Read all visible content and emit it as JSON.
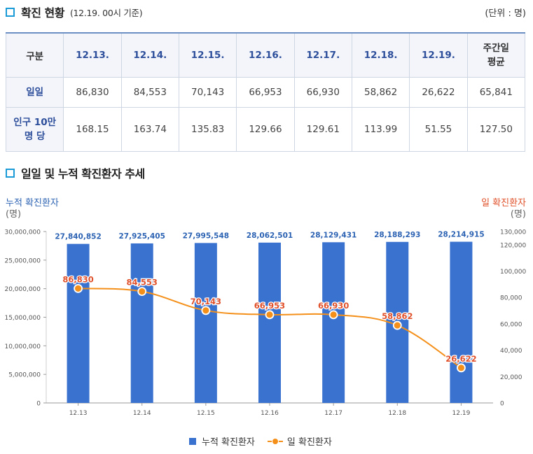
{
  "section1": {
    "title": "확진 현황",
    "subtitle": "(12.19. 00시 기준)",
    "unit": "(단위 : 명)"
  },
  "table": {
    "header_first": "구분",
    "dates": [
      "12.13.",
      "12.14.",
      "12.15.",
      "12.16.",
      "12.17.",
      "12.18.",
      "12.19."
    ],
    "header_last_line1": "주간일",
    "header_last_line2": "평균",
    "row1_label": "일일",
    "row1": [
      "86,830",
      "84,553",
      "70,143",
      "66,953",
      "66,930",
      "58,862",
      "26,622",
      "65,841"
    ],
    "row2_label_line1": "인구 10만",
    "row2_label_line2": "명 당",
    "row2": [
      "168.15",
      "163.74",
      "135.83",
      "129.66",
      "129.61",
      "113.99",
      "51.55",
      "127.50"
    ]
  },
  "section2": {
    "title": "일일 및 누적 확진환자 추세"
  },
  "colors": {
    "bar": "#3a73cf",
    "line": "#f4901a",
    "accent": "#1a9ad6",
    "left_axis_label": "#2d63b3",
    "right_axis_label": "#e0502a"
  },
  "chart_data": {
    "type": "bar",
    "categories": [
      "12.13",
      "12.14",
      "12.15",
      "12.16",
      "12.17",
      "12.18",
      "12.19"
    ],
    "y_left_label_line1": "누적 확진환자",
    "y_left_label_line2": "(명)",
    "y_right_label_line1": "일 확진환자",
    "y_right_label_line2": "(명)",
    "y_left_ticks": [
      "0",
      "5,000,000",
      "10,000,000",
      "15,000,000",
      "20,000,000",
      "25,000,000",
      "30,000,000"
    ],
    "y_right_ticks": [
      "0",
      "20,000",
      "40,000",
      "60,000",
      "80,000",
      "100,000",
      "120,000",
      "130,000"
    ],
    "ylim_left": [
      0,
      30000000
    ],
    "ylim_right": [
      0,
      130000
    ],
    "series": [
      {
        "name": "누적 확진환자",
        "type": "bar",
        "axis": "left",
        "values": [
          27840852,
          27925405,
          27995548,
          28062501,
          28129431,
          28188293,
          28214915
        ],
        "labels": [
          "27,840,852",
          "27,925,405",
          "27,995,548",
          "28,062,501",
          "28,129,431",
          "28,188,293",
          "28,214,915"
        ]
      },
      {
        "name": "일 확진환자",
        "type": "line",
        "axis": "right",
        "values": [
          86830,
          84553,
          70143,
          66953,
          66930,
          58862,
          26622
        ],
        "labels": [
          "86,830",
          "84,553",
          "70,143",
          "66,953",
          "66,930",
          "58,862",
          "26,622"
        ]
      }
    ],
    "legend_position": "bottom"
  }
}
